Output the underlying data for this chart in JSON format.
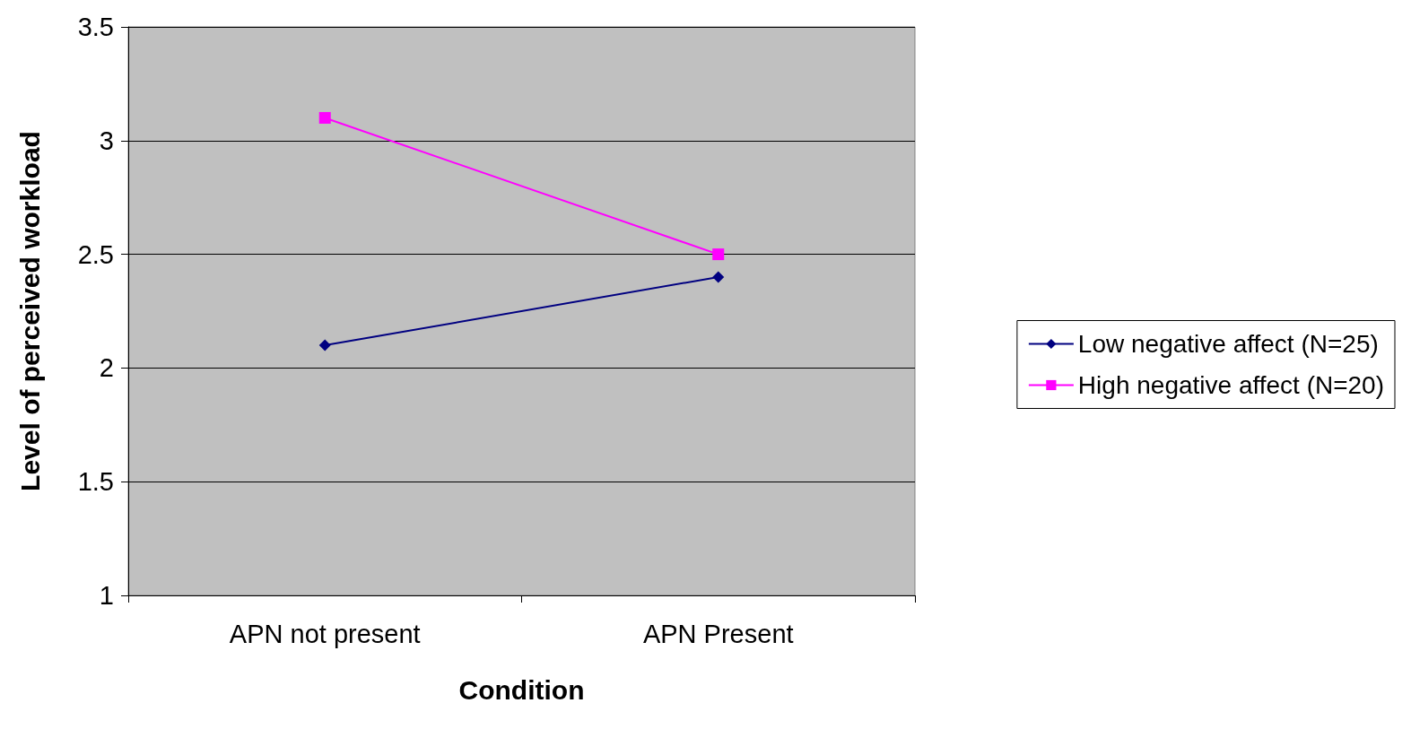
{
  "chart_data": {
    "type": "line",
    "xlabel": "Condition",
    "ylabel": "Level of perceived workload",
    "categories": [
      "APN not present",
      "APN Present"
    ],
    "series": [
      {
        "name": "Low negative affect (N=25)",
        "color": "#000080",
        "values": [
          2.1,
          2.4
        ],
        "marker": "diamond"
      },
      {
        "name": "High negative affect (N=20)",
        "color": "#ff00ff",
        "values": [
          3.1,
          2.5
        ],
        "marker": "square"
      }
    ],
    "ylim": [
      1,
      3.5
    ],
    "yticks": [
      1,
      1.5,
      2,
      2.5,
      3,
      3.5
    ],
    "grid": "y",
    "legend": "right",
    "line_style": "solid"
  }
}
